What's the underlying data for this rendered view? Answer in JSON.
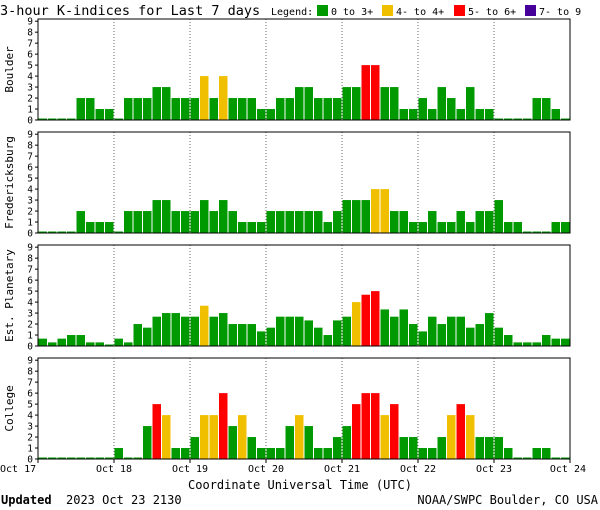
{
  "title": "3-hour K-indices for Last 7 days",
  "legend": {
    "label": "Legend:",
    "items": [
      {
        "label": "0 to 3+",
        "color": "#009900"
      },
      {
        "label": "4- to 4+",
        "color": "#f0c000"
      },
      {
        "label": "5- to 6+",
        "color": "#ff0000"
      },
      {
        "label": "7- to 9",
        "color": "#440099"
      }
    ]
  },
  "footer": {
    "updated_label": "Updated",
    "updated_time": "2023 Oct 23 2130",
    "source": "NOAA/SWPC Boulder, CO USA"
  },
  "chart_data": {
    "type": "bar",
    "xlabel": "Coordinate Universal Time (UTC)",
    "x_ticks": [
      "Oct 17",
      "Oct 18",
      "Oct 19",
      "Oct 20",
      "Oct 21",
      "Oct 22",
      "Oct 23",
      "Oct 24"
    ],
    "ylim": [
      0,
      9
    ],
    "y_ticks": [
      "0",
      "1",
      "2",
      "3",
      "4",
      "5",
      "6",
      "7",
      "8",
      "9"
    ],
    "bins_per_day": 8,
    "panels": [
      {
        "name": "Boulder",
        "values": [
          0,
          0,
          0,
          0,
          2,
          2,
          1,
          1,
          0,
          2,
          2,
          2,
          3,
          3,
          2,
          2,
          2,
          4,
          2,
          4,
          2,
          2,
          2,
          1,
          1,
          2,
          2,
          3,
          3,
          2,
          2,
          2,
          3,
          3,
          5,
          5,
          3,
          3,
          1,
          1,
          2,
          1,
          3,
          2,
          1,
          3,
          1,
          1,
          0,
          0,
          0,
          0,
          2,
          2,
          1,
          0
        ]
      },
      {
        "name": "Fredericksburg",
        "values": [
          0,
          0,
          0,
          0,
          2,
          1,
          1,
          1,
          0,
          2,
          2,
          2,
          3,
          3,
          2,
          2,
          2,
          3,
          2,
          3,
          2,
          1,
          1,
          1,
          2,
          2,
          2,
          2,
          2,
          2,
          1,
          2,
          3,
          3,
          3,
          4,
          4,
          2,
          2,
          1,
          1,
          2,
          1,
          1,
          2,
          1,
          2,
          2,
          3,
          1,
          1,
          0,
          0,
          0,
          1,
          1
        ]
      },
      {
        "name": "Est. Planetary",
        "values": [
          0.67,
          0.33,
          0.67,
          1,
          1,
          0.33,
          0.33,
          0,
          0.67,
          0.33,
          2,
          1.67,
          2.67,
          3,
          3,
          2.67,
          2.67,
          3.67,
          2.67,
          3,
          2,
          2,
          2,
          1.33,
          1.67,
          2.67,
          2.67,
          2.67,
          2.33,
          1.67,
          1,
          2.33,
          2.67,
          4,
          4.67,
          5,
          3.33,
          2.67,
          3.33,
          2,
          1.33,
          2.67,
          2,
          2.67,
          2.67,
          1.67,
          2,
          3,
          1.67,
          1,
          0.33,
          0.33,
          0.33,
          1,
          0.67,
          0.67
        ]
      },
      {
        "name": "College",
        "values": [
          0,
          0,
          0,
          0,
          0,
          0,
          0,
          0,
          1,
          0,
          0,
          3,
          5,
          4,
          1,
          1,
          2,
          4,
          4,
          6,
          3,
          4,
          2,
          1,
          1,
          1,
          3,
          4,
          3,
          1,
          1,
          2,
          3,
          5,
          6,
          6,
          4,
          5,
          2,
          2,
          1,
          1,
          2,
          4,
          5,
          4,
          2,
          2,
          2,
          1,
          0,
          0,
          1,
          1,
          0,
          0
        ]
      }
    ]
  }
}
